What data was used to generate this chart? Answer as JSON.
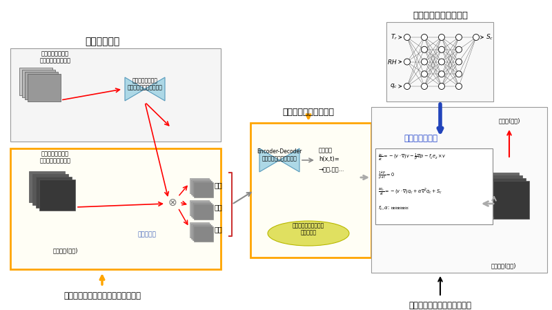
{
  "bg_color": "#ffffff",
  "title_left": "鉛直層の分離",
  "title_middle": "気圧場・風速場の推定",
  "title_right_top": "雲の生成・消滅の計算",
  "label_bottom_left": "気象衛星画像を用いた日射量の推定",
  "label_bottom_right": "次の時刻の日射量の予測計算",
  "label_top_box": "可視及び赤外画像\n（最新の衛星観測）",
  "label_bottom_box": "可視及び赤外画像\n（最新の衛星観測）",
  "label_cloud_thickness_est": "雲の厚さ(推定)",
  "label_deep_model": "鉛直層分離モデル\n（ディープラーニング）",
  "label_vertical_sep": "鉛直層分離",
  "label_upper": "上層",
  "label_middle_layer": "中層",
  "label_lower": "下層",
  "label_encoder": "Encoder-Decoder\n（ディープラーニング）",
  "label_latent1": "潜在変数",
  "label_latent2": "h(x,t)=",
  "label_latent3": "→風速,気圧...",
  "label_atmosphere": "大気力学に関する潜在\n変数を推定",
  "label_cloud_eq": "雲力学の方程式",
  "label_solar_pred": "日射量(予測)",
  "label_cloud_pred": "雲の厚さ(予測)",
  "label_nn_input1": "$T_r$",
  "label_nn_input2": "$RH$",
  "label_nn_input3": "$q_c$",
  "label_nn_output": "$S_c$"
}
